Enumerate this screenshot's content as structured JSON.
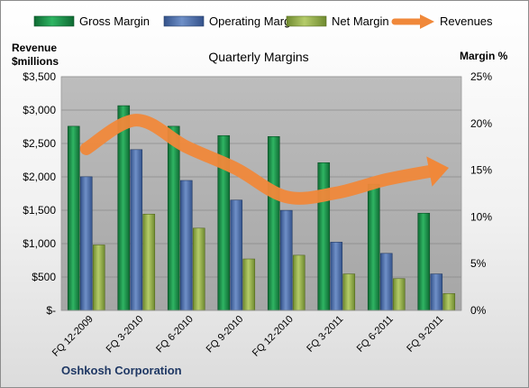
{
  "chart_data": {
    "type": "bar",
    "title": "Quarterly Margins",
    "y_left_label": [
      "Revenue",
      "$millions"
    ],
    "y_right_label": "Margin %",
    "footer": "Oshkosh Corporation",
    "categories": [
      "FQ 12-2009",
      "FQ 3-2010",
      "FQ 6-2010",
      "FQ 9-2010",
      "FQ 12-2010",
      "FQ 3-2011",
      "FQ 6-2011",
      "FQ 9-2011"
    ],
    "y_left": {
      "min": 0,
      "max": 3500,
      "step": 500,
      "ticks": [
        "$-",
        "$500",
        "$1,000",
        "$1,500",
        "$2,000",
        "$2,500",
        "$3,000",
        "$3,500"
      ]
    },
    "y_right": {
      "min": 0,
      "max": 25,
      "step": 5,
      "ticks": [
        "0%",
        "5%",
        "10%",
        "15%",
        "20%",
        "25%"
      ]
    },
    "series": [
      {
        "name": "Gross Margin",
        "type": "bar",
        "axis": "right",
        "color": "#1f8f4a",
        "values": [
          19.7,
          21.9,
          19.7,
          18.7,
          18.6,
          15.8,
          13.5,
          10.4
        ]
      },
      {
        "name": "Operating Margin",
        "type": "bar",
        "axis": "right",
        "color": "#4f6fa8",
        "values": [
          14.3,
          17.2,
          13.9,
          11.8,
          10.7,
          7.3,
          6.1,
          3.9
        ]
      },
      {
        "name": "Net Margin",
        "type": "bar",
        "axis": "right",
        "color": "#8fa84a",
        "values": [
          7.0,
          10.3,
          8.8,
          5.5,
          5.9,
          3.9,
          3.4,
          1.8
        ]
      },
      {
        "name": "Revenues",
        "type": "line",
        "axis": "left",
        "color": "#f0883a",
        "values": [
          2420,
          2850,
          2450,
          2120,
          1700,
          1760,
          1960,
          2100
        ]
      }
    ],
    "legend": "top",
    "grid": true
  }
}
